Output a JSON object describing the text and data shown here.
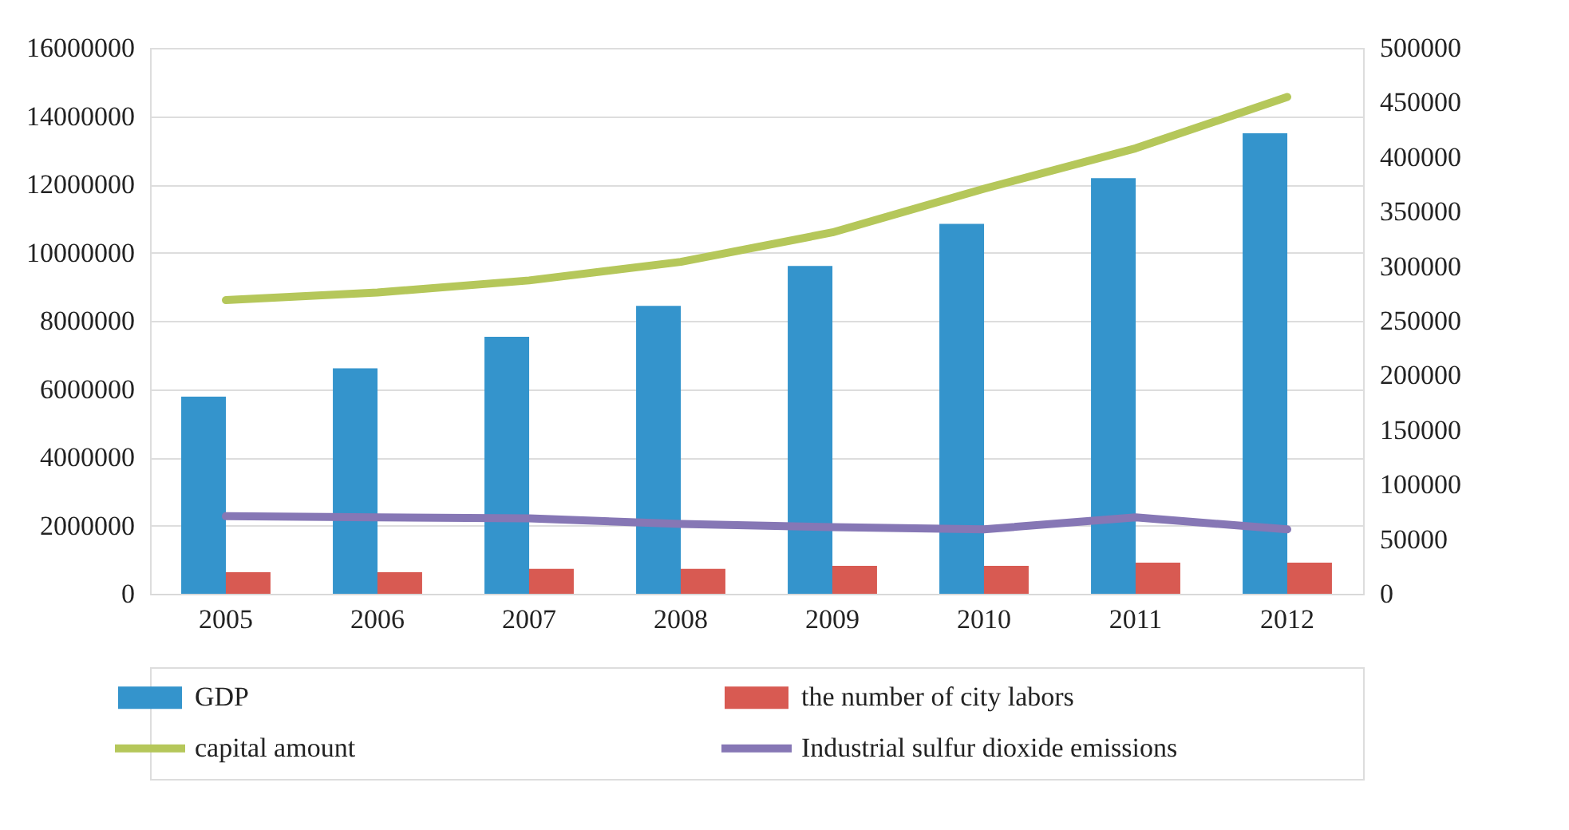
{
  "chart_data": {
    "type": "bar",
    "categories": [
      "2005",
      "2006",
      "2007",
      "2008",
      "2009",
      "2010",
      "2011",
      "2012"
    ],
    "series": [
      {
        "name": "GDP",
        "color": "#3494cc",
        "values": [
          5780000,
          6610000,
          7530000,
          8440000,
          9610000,
          10840000,
          12180000,
          13500000
        ]
      },
      {
        "name": "the number of city labors",
        "color": "#d85a52",
        "values": [
          630000,
          630000,
          730000,
          730000,
          820000,
          820000,
          910000,
          910000
        ]
      },
      {
        "name": "capital amount",
        "type": "line",
        "axis": "y2",
        "color": "#b5c75a",
        "values": [
          269000,
          276000,
          287000,
          304000,
          331000,
          371000,
          408000,
          455000
        ]
      },
      {
        "name": "Industrial sulfur dioxide emissions",
        "type": "line",
        "axis": "y2",
        "color": "#8677b5",
        "values": [
          71000,
          70000,
          69000,
          64000,
          61000,
          59000,
          70000,
          59000
        ]
      }
    ],
    "ylim": [
      0,
      16000000
    ],
    "yticks": [
      0,
      2000000,
      4000000,
      6000000,
      8000000,
      10000000,
      12000000,
      14000000,
      16000000
    ],
    "y2lim": [
      0,
      500000
    ],
    "y2ticks": [
      0,
      50000,
      100000,
      150000,
      200000,
      250000,
      300000,
      350000,
      400000,
      450000,
      500000
    ],
    "grid": "y",
    "legend": "bottom",
    "line_style": "solid",
    "marker": "none"
  }
}
